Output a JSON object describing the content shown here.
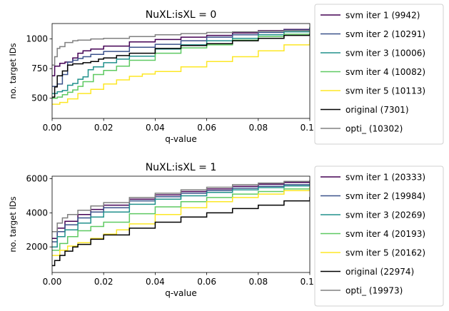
{
  "chart_data": [
    {
      "type": "line",
      "title": "NuXL:isXL = 0",
      "xlabel": "q-value",
      "ylabel": "no. target IDs",
      "xlim": [
        0,
        0.1
      ],
      "ylim": [
        330,
        1130
      ],
      "xticks": [
        "0.00",
        "0.02",
        "0.04",
        "0.06",
        "0.08",
        "0.10"
      ],
      "xtick_values": [
        0,
        0.02,
        0.04,
        0.06,
        0.08,
        0.1
      ],
      "yticks": [
        "500",
        "750",
        "1000"
      ],
      "ytick_values": [
        500,
        750,
        1000
      ],
      "grid": false,
      "legend_position": "outside-right",
      "series": [
        {
          "name": "svm iter 1 (9942)",
          "color": "#440154",
          "x": [
            0,
            0.001,
            0.003,
            0.005,
            0.008,
            0.01,
            0.012,
            0.015,
            0.02,
            0.03,
            0.04,
            0.05,
            0.06,
            0.07,
            0.08,
            0.09,
            0.1
          ],
          "y": [
            690,
            770,
            795,
            805,
            840,
            880,
            900,
            915,
            940,
            975,
            995,
            1015,
            1030,
            1050,
            1070,
            1080,
            1085
          ]
        },
        {
          "name": "svm iter 2 (10291)",
          "color": "#3b528b",
          "x": [
            0,
            0.002,
            0.004,
            0.006,
            0.008,
            0.01,
            0.012,
            0.015,
            0.02,
            0.03,
            0.04,
            0.05,
            0.06,
            0.07,
            0.08,
            0.09,
            0.1
          ],
          "y": [
            600,
            620,
            700,
            805,
            820,
            835,
            850,
            870,
            895,
            930,
            955,
            985,
            1015,
            1035,
            1055,
            1075,
            1090
          ]
        },
        {
          "name": "svm iter 3 (10006)",
          "color": "#21918c",
          "x": [
            0,
            0.002,
            0.004,
            0.006,
            0.008,
            0.01,
            0.012,
            0.014,
            0.016,
            0.02,
            0.025,
            0.03,
            0.04,
            0.05,
            0.06,
            0.07,
            0.08,
            0.09,
            0.1
          ],
          "y": [
            540,
            555,
            565,
            610,
            625,
            660,
            680,
            740,
            765,
            800,
            830,
            855,
            915,
            950,
            985,
            1005,
            1035,
            1060,
            1095
          ]
        },
        {
          "name": "svm iter 4 (10082)",
          "color": "#5ec962",
          "x": [
            0,
            0.002,
            0.004,
            0.006,
            0.008,
            0.01,
            0.012,
            0.016,
            0.02,
            0.025,
            0.03,
            0.04,
            0.05,
            0.06,
            0.07,
            0.08,
            0.09,
            0.1
          ],
          "y": [
            500,
            510,
            530,
            550,
            570,
            600,
            640,
            700,
            735,
            770,
            820,
            880,
            925,
            950,
            990,
            1020,
            1040,
            1060
          ]
        },
        {
          "name": "svm iter 5 (10113)",
          "color": "#fde725",
          "x": [
            0,
            0.003,
            0.006,
            0.01,
            0.015,
            0.02,
            0.025,
            0.03,
            0.035,
            0.04,
            0.05,
            0.06,
            0.07,
            0.08,
            0.09,
            0.1
          ],
          "y": [
            450,
            465,
            495,
            540,
            575,
            620,
            655,
            685,
            705,
            725,
            765,
            810,
            850,
            900,
            950,
            990
          ]
        },
        {
          "name": "original (7301)",
          "color": "#000000",
          "x": [
            0,
            0.001,
            0.002,
            0.004,
            0.006,
            0.008,
            0.012,
            0.015,
            0.018,
            0.02,
            0.025,
            0.03,
            0.04,
            0.05,
            0.06,
            0.07,
            0.08,
            0.09,
            0.1
          ],
          "y": [
            510,
            595,
            690,
            730,
            780,
            790,
            800,
            810,
            830,
            840,
            860,
            880,
            920,
            945,
            960,
            985,
            1005,
            1030,
            1040
          ]
        },
        {
          "name": "opti_ (10302)",
          "color": "#808080",
          "x": [
            0,
            0.001,
            0.002,
            0.003,
            0.005,
            0.008,
            0.01,
            0.015,
            0.02,
            0.03,
            0.04,
            0.05,
            0.06,
            0.07,
            0.08,
            0.09,
            0.1
          ],
          "y": [
            780,
            850,
            920,
            935,
            970,
            985,
            990,
            1000,
            1005,
            1020,
            1035,
            1045,
            1055,
            1060,
            1065,
            1070,
            1075
          ]
        }
      ]
    },
    {
      "type": "line",
      "title": "NuXL:isXL = 1",
      "xlabel": "q-value",
      "ylabel": "no. target IDs",
      "xlim": [
        0,
        0.1
      ],
      "ylim": [
        500,
        6150
      ],
      "xticks": [
        "0.00",
        "0.02",
        "0.04",
        "0.06",
        "0.08",
        "0.10"
      ],
      "xtick_values": [
        0,
        0.02,
        0.04,
        0.06,
        0.08,
        0.1
      ],
      "yticks": [
        "2000",
        "4000",
        "6000"
      ],
      "ytick_values": [
        2000,
        4000,
        6000
      ],
      "grid": false,
      "legend_position": "outside-right",
      "series": [
        {
          "name": "svm iter 1 (20333)",
          "color": "#440154",
          "x": [
            0,
            0.002,
            0.005,
            0.01,
            0.015,
            0.02,
            0.03,
            0.04,
            0.05,
            0.06,
            0.07,
            0.08,
            0.09,
            0.1
          ],
          "y": [
            2500,
            3100,
            3500,
            3900,
            4200,
            4450,
            4800,
            5050,
            5250,
            5400,
            5550,
            5680,
            5780,
            5850
          ]
        },
        {
          "name": "svm iter 2 (19984)",
          "color": "#3b528b",
          "x": [
            0,
            0.002,
            0.005,
            0.01,
            0.015,
            0.02,
            0.03,
            0.04,
            0.05,
            0.06,
            0.07,
            0.08,
            0.09,
            0.1
          ],
          "y": [
            2300,
            2900,
            3300,
            3700,
            4050,
            4300,
            4700,
            4950,
            5150,
            5300,
            5450,
            5560,
            5650,
            5700
          ]
        },
        {
          "name": "svm iter 3 (20269)",
          "color": "#21918c",
          "x": [
            0,
            0.002,
            0.005,
            0.01,
            0.015,
            0.02,
            0.03,
            0.04,
            0.05,
            0.06,
            0.07,
            0.08,
            0.09,
            0.1
          ],
          "y": [
            2000,
            2600,
            3000,
            3400,
            3750,
            4050,
            4500,
            4800,
            5000,
            5200,
            5350,
            5480,
            5580,
            5650
          ]
        },
        {
          "name": "svm iter 4 (20193)",
          "color": "#5ec962",
          "x": [
            0,
            0.003,
            0.006,
            0.01,
            0.015,
            0.02,
            0.03,
            0.04,
            0.05,
            0.06,
            0.07,
            0.08,
            0.09,
            0.1
          ],
          "y": [
            1800,
            2200,
            2600,
            2950,
            3200,
            3450,
            3950,
            4350,
            4650,
            4900,
            5100,
            5250,
            5400,
            5500
          ]
        },
        {
          "name": "svm iter 5 (20162)",
          "color": "#fde725",
          "x": [
            0,
            0.003,
            0.006,
            0.01,
            0.015,
            0.02,
            0.025,
            0.03,
            0.04,
            0.05,
            0.06,
            0.07,
            0.08,
            0.09,
            0.1
          ],
          "y": [
            1500,
            1800,
            2050,
            2250,
            2500,
            2750,
            3000,
            3350,
            3900,
            4300,
            4650,
            4900,
            5100,
            5300,
            5450
          ]
        },
        {
          "name": "original (22974)",
          "color": "#000000",
          "x": [
            0,
            0.001,
            0.003,
            0.005,
            0.008,
            0.01,
            0.015,
            0.02,
            0.03,
            0.04,
            0.05,
            0.06,
            0.07,
            0.08,
            0.09,
            0.1
          ],
          "y": [
            900,
            1200,
            1500,
            1750,
            2000,
            2150,
            2450,
            2700,
            3100,
            3450,
            3750,
            4000,
            4250,
            4450,
            4700,
            4900
          ]
        },
        {
          "name": "opti_ (19973)",
          "color": "#808080",
          "x": [
            0,
            0.002,
            0.004,
            0.006,
            0.01,
            0.015,
            0.02,
            0.03,
            0.04,
            0.05,
            0.06,
            0.07,
            0.08,
            0.09,
            0.1
          ],
          "y": [
            2900,
            3400,
            3700,
            3900,
            4150,
            4400,
            4600,
            4900,
            5150,
            5350,
            5500,
            5650,
            5750,
            5850,
            5900
          ]
        }
      ]
    }
  ]
}
